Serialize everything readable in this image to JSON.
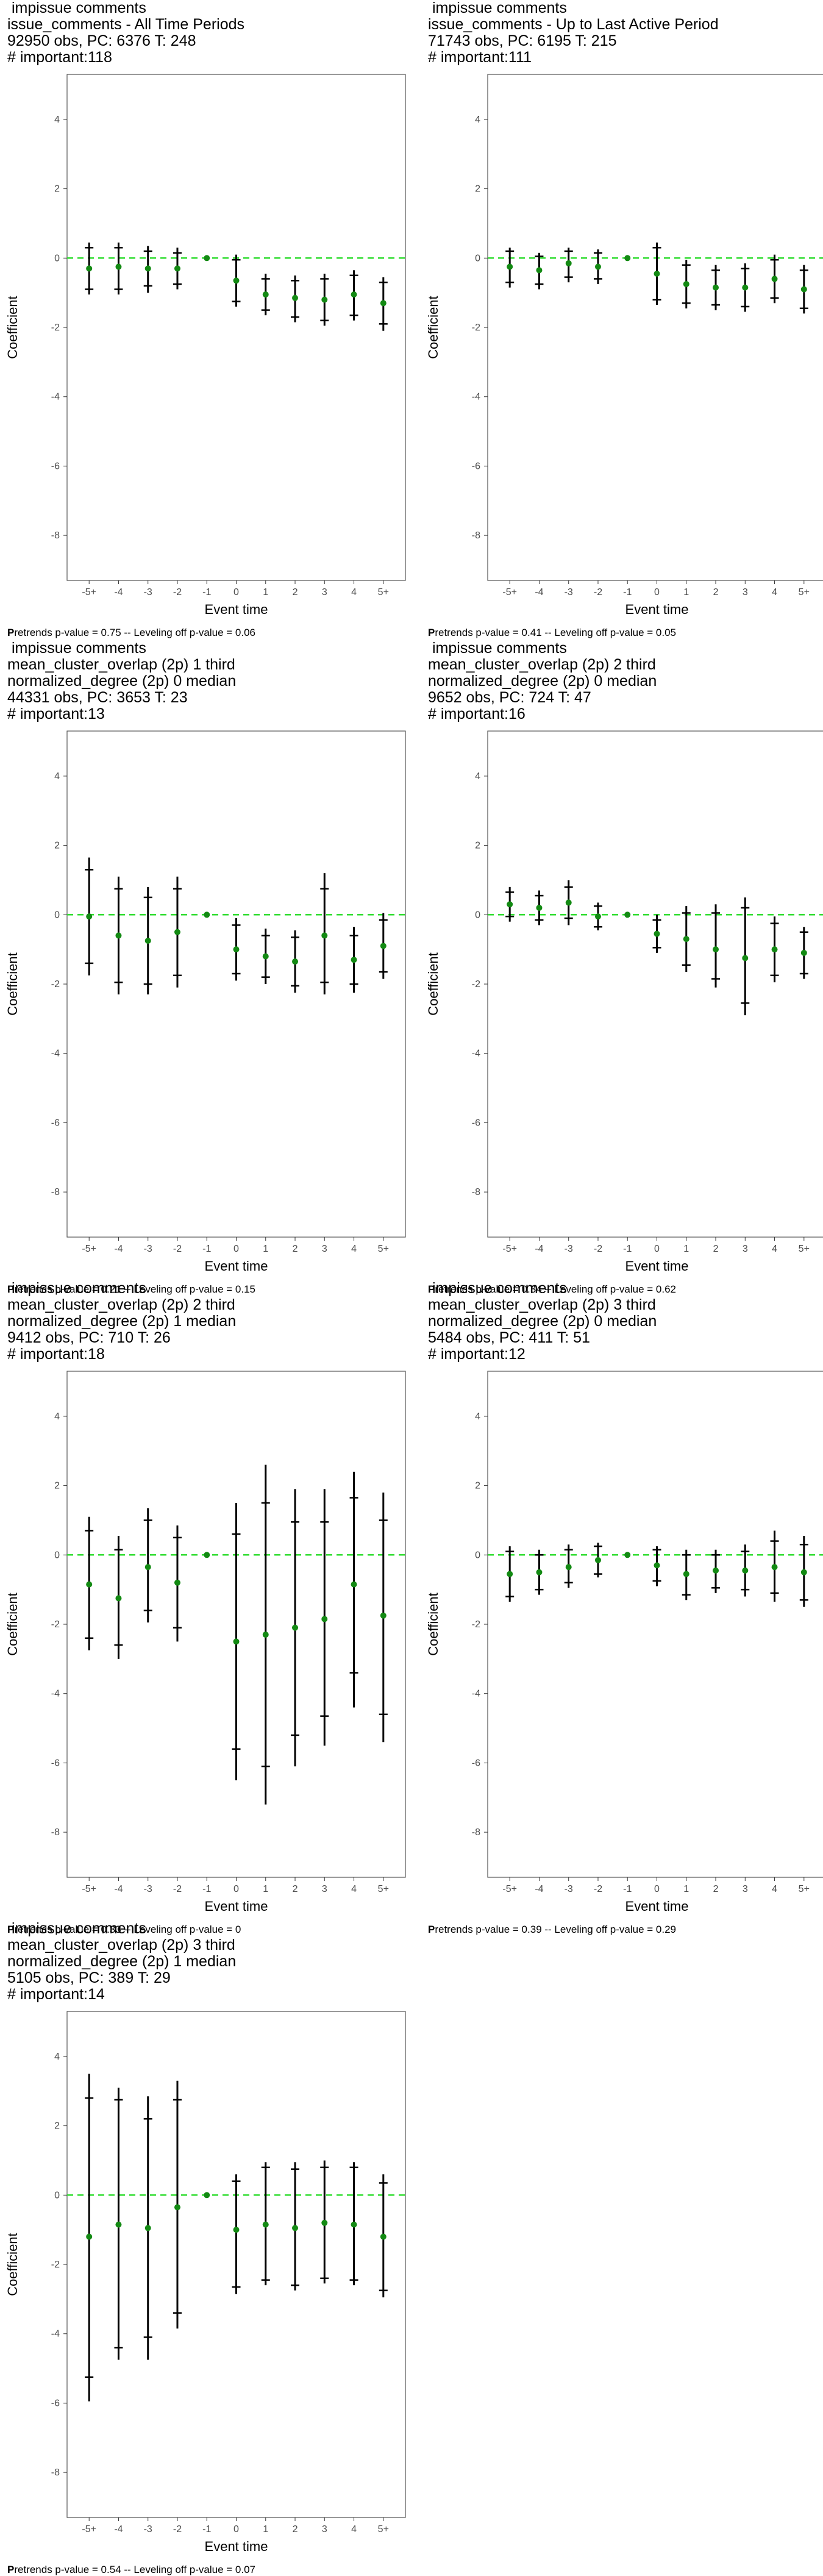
{
  "colors": {
    "zero_line": "#33dd33",
    "point": "#138a13",
    "bar": "#000000",
    "frame": "#555555"
  },
  "chart_data": [
    {
      "type": "scatter",
      "title_lines": [
        " impissue comments",
        "issue_comments - All Time Periods",
        "92950 obs, PC: 6376 T: 248",
        "# important:118"
      ],
      "xlabel": "Event time",
      "ylabel": "Coefficient",
      "categories": [
        "-5+",
        "-4",
        "-3",
        "-2",
        "-1",
        "0",
        "1",
        "2",
        "3",
        "4",
        "5+"
      ],
      "yticks": [
        "4",
        "2",
        "0",
        "-2",
        "-4",
        "-6",
        "-8"
      ],
      "ylim": [
        -9.3,
        5.3
      ],
      "estimate": [
        -0.3,
        -0.25,
        -0.3,
        -0.3,
        0,
        -0.65,
        -1.05,
        -1.15,
        -1.2,
        -1.05,
        -1.3
      ],
      "ci95": [
        [
          -1.05,
          0.45
        ],
        [
          -1.05,
          0.45
        ],
        [
          -1.0,
          0.35
        ],
        [
          -0.9,
          0.3
        ],
        [
          0,
          0
        ],
        [
          -1.4,
          0.1
        ],
        [
          -1.65,
          -0.45
        ],
        [
          -1.85,
          -0.5
        ],
        [
          -1.95,
          -0.45
        ],
        [
          -1.8,
          -0.35
        ],
        [
          -2.1,
          -0.55
        ]
      ],
      "ci90": [
        [
          -0.9,
          0.3
        ],
        [
          -0.9,
          0.3
        ],
        [
          -0.8,
          0.2
        ],
        [
          -0.75,
          0.15
        ],
        [
          0,
          0
        ],
        [
          -1.25,
          -0.05
        ],
        [
          -1.5,
          -0.6
        ],
        [
          -1.7,
          -0.65
        ],
        [
          -1.8,
          -0.6
        ],
        [
          -1.65,
          -0.5
        ],
        [
          -1.9,
          -0.7
        ]
      ],
      "note_bold": "P",
      "note": "retrends p-value = 0.75 -- Leveling off p-value = 0.06"
    },
    {
      "type": "scatter",
      "title_lines": [
        " impissue comments",
        "issue_comments - Up to Last Active Period",
        "71743 obs, PC: 6195 T: 215",
        "# important:111"
      ],
      "xlabel": "Event time",
      "ylabel": "Coefficient",
      "categories": [
        "-5+",
        "-4",
        "-3",
        "-2",
        "-1",
        "0",
        "1",
        "2",
        "3",
        "4",
        "5+"
      ],
      "yticks": [
        "4",
        "2",
        "0",
        "-2",
        "-4",
        "-6",
        "-8"
      ],
      "ylim": [
        -9.3,
        5.3
      ],
      "estimate": [
        -0.25,
        -0.35,
        -0.15,
        -0.25,
        0,
        -0.45,
        -0.75,
        -0.85,
        -0.85,
        -0.6,
        -0.9
      ],
      "ci95": [
        [
          -0.85,
          0.3
        ],
        [
          -0.9,
          0.15
        ],
        [
          -0.7,
          0.3
        ],
        [
          -0.75,
          0.25
        ],
        [
          0,
          0
        ],
        [
          -1.35,
          0.45
        ],
        [
          -1.45,
          -0.05
        ],
        [
          -1.5,
          -0.2
        ],
        [
          -1.55,
          -0.15
        ],
        [
          -1.3,
          0.1
        ],
        [
          -1.6,
          -0.2
        ]
      ],
      "ci90": [
        [
          -0.7,
          0.2
        ],
        [
          -0.75,
          0.05
        ],
        [
          -0.55,
          0.2
        ],
        [
          -0.6,
          0.15
        ],
        [
          0,
          0
        ],
        [
          -1.2,
          0.3
        ],
        [
          -1.3,
          -0.2
        ],
        [
          -1.35,
          -0.35
        ],
        [
          -1.4,
          -0.3
        ],
        [
          -1.15,
          -0.05
        ],
        [
          -1.45,
          -0.35
        ]
      ],
      "note_bold": "P",
      "note": "retrends p-value = 0.41 -- Leveling off p-value = 0.05"
    },
    {
      "type": "scatter",
      "title_lines": [
        " impissue comments",
        "mean_cluster_overlap (2p) 1 third",
        "normalized_degree (2p) 0 median",
        "44331 obs, PC: 3653 T: 23",
        "# important:13"
      ],
      "xlabel": "Event time",
      "ylabel": "Coefficient",
      "categories": [
        "-5+",
        "-4",
        "-3",
        "-2",
        "-1",
        "0",
        "1",
        "2",
        "3",
        "4",
        "5+"
      ],
      "yticks": [
        "4",
        "2",
        "0",
        "-2",
        "-4",
        "-6",
        "-8"
      ],
      "ylim": [
        -9.3,
        5.3
      ],
      "estimate": [
        -0.05,
        -0.6,
        -0.75,
        -0.5,
        0,
        -1.0,
        -1.2,
        -1.35,
        -0.6,
        -1.3,
        -0.9
      ],
      "ci95": [
        [
          -1.75,
          1.65
        ],
        [
          -2.3,
          1.1
        ],
        [
          -2.3,
          0.8
        ],
        [
          -2.1,
          1.1
        ],
        [
          0,
          0
        ],
        [
          -1.9,
          -0.1
        ],
        [
          -2.0,
          -0.4
        ],
        [
          -2.25,
          -0.45
        ],
        [
          -2.3,
          1.2
        ],
        [
          -2.25,
          -0.35
        ],
        [
          -1.85,
          0.05
        ]
      ],
      "ci90": [
        [
          -1.4,
          1.3
        ],
        [
          -1.95,
          0.75
        ],
        [
          -2.0,
          0.5
        ],
        [
          -1.75,
          0.75
        ],
        [
          0,
          0
        ],
        [
          -1.7,
          -0.3
        ],
        [
          -1.8,
          -0.6
        ],
        [
          -2.05,
          -0.65
        ],
        [
          -1.95,
          0.75
        ],
        [
          -2.0,
          -0.6
        ],
        [
          -1.65,
          -0.15
        ]
      ],
      "note_bold": "P",
      "note": "retrends p-value = 0.21 -- Leveling off p-value = 0.15"
    },
    {
      "type": "scatter",
      "title_lines": [
        " impissue comments",
        "mean_cluster_overlap (2p) 2 third",
        "normalized_degree (2p) 0 median",
        "9652 obs, PC: 724 T: 47",
        "# important:16"
      ],
      "xlabel": "Event time",
      "ylabel": "Coefficient",
      "categories": [
        "-5+",
        "-4",
        "-3",
        "-2",
        "-1",
        "0",
        "1",
        "2",
        "3",
        "4",
        "5+"
      ],
      "yticks": [
        "4",
        "2",
        "0",
        "-2",
        "-4",
        "-6",
        "-8"
      ],
      "ylim": [
        -9.3,
        5.3
      ],
      "estimate": [
        0.3,
        0.2,
        0.35,
        -0.05,
        0,
        -0.55,
        -0.7,
        -1.0,
        -1.25,
        -1.0,
        -1.1
      ],
      "ci95": [
        [
          -0.2,
          0.8
        ],
        [
          -0.3,
          0.7
        ],
        [
          -0.3,
          1.0
        ],
        [
          -0.45,
          0.35
        ],
        [
          0,
          0
        ],
        [
          -1.1,
          0.0
        ],
        [
          -1.65,
          0.25
        ],
        [
          -2.1,
          0.3
        ],
        [
          -2.9,
          0.5
        ],
        [
          -1.95,
          -0.05
        ],
        [
          -1.85,
          -0.35
        ]
      ],
      "ci90": [
        [
          -0.05,
          0.65
        ],
        [
          -0.15,
          0.55
        ],
        [
          -0.1,
          0.8
        ],
        [
          -0.35,
          0.25
        ],
        [
          0,
          0
        ],
        [
          -0.95,
          -0.15
        ],
        [
          -1.45,
          0.05
        ],
        [
          -1.85,
          0.05
        ],
        [
          -2.55,
          0.2
        ],
        [
          -1.75,
          -0.25
        ],
        [
          -1.7,
          -0.5
        ]
      ],
      "note_bold": "P",
      "note": "retrends p-value = 0.34 -- Leveling off p-value = 0.62"
    },
    {
      "type": "scatter",
      "title_lines": [
        " impissue comments",
        "mean_cluster_overlap (2p) 2 third",
        "normalized_degree (2p) 1 median",
        "9412 obs, PC: 710 T: 26",
        "# important:18"
      ],
      "xlabel": "Event time",
      "ylabel": "Coefficient",
      "categories": [
        "-5+",
        "-4",
        "-3",
        "-2",
        "-1",
        "0",
        "1",
        "2",
        "3",
        "4",
        "5+"
      ],
      "yticks": [
        "4",
        "2",
        "0",
        "-2",
        "-4",
        "-6",
        "-8"
      ],
      "ylim": [
        -9.3,
        5.3
      ],
      "estimate": [
        -0.85,
        -1.25,
        -0.35,
        -0.8,
        0,
        -2.5,
        -2.3,
        -2.1,
        -1.85,
        -0.85,
        -1.75
      ],
      "ci95": [
        [
          -2.75,
          1.1
        ],
        [
          -3.0,
          0.55
        ],
        [
          -1.95,
          1.35
        ],
        [
          -2.5,
          0.85
        ],
        [
          0,
          0
        ],
        [
          -6.5,
          1.5
        ],
        [
          -7.2,
          2.6
        ],
        [
          -6.1,
          1.9
        ],
        [
          -5.5,
          1.9
        ],
        [
          -4.4,
          2.4
        ],
        [
          -5.4,
          1.8
        ]
      ],
      "ci90": [
        [
          -2.4,
          0.7
        ],
        [
          -2.6,
          0.15
        ],
        [
          -1.6,
          1.0
        ],
        [
          -2.1,
          0.5
        ],
        [
          0,
          0
        ],
        [
          -5.6,
          0.6
        ],
        [
          -6.1,
          1.5
        ],
        [
          -5.2,
          0.95
        ],
        [
          -4.65,
          0.95
        ],
        [
          -3.4,
          1.65
        ],
        [
          -4.6,
          1.0
        ]
      ],
      "note_bold": "P",
      "note": "retrends p-value = 0.33 -- Leveling off p-value = 0"
    },
    {
      "type": "scatter",
      "title_lines": [
        " impissue comments",
        "mean_cluster_overlap (2p) 3 third",
        "normalized_degree (2p) 0 median",
        "5484 obs, PC: 411 T: 51",
        "# important:12"
      ],
      "xlabel": "Event time",
      "ylabel": "Coefficient",
      "categories": [
        "-5+",
        "-4",
        "-3",
        "-2",
        "-1",
        "0",
        "1",
        "2",
        "3",
        "4",
        "5+"
      ],
      "yticks": [
        "4",
        "2",
        "0",
        "-2",
        "-4",
        "-6",
        "-8"
      ],
      "ylim": [
        -9.3,
        5.3
      ],
      "estimate": [
        -0.55,
        -0.5,
        -0.35,
        -0.15,
        0,
        -0.3,
        -0.55,
        -0.45,
        -0.45,
        -0.35,
        -0.5
      ],
      "ci95": [
        [
          -1.35,
          0.25
        ],
        [
          -1.15,
          0.15
        ],
        [
          -0.95,
          0.3
        ],
        [
          -0.65,
          0.35
        ],
        [
          0,
          0
        ],
        [
          -0.9,
          0.25
        ],
        [
          -1.3,
          0.15
        ],
        [
          -1.1,
          0.15
        ],
        [
          -1.2,
          0.3
        ],
        [
          -1.35,
          0.7
        ],
        [
          -1.5,
          0.55
        ]
      ],
      "ci90": [
        [
          -1.2,
          0.1
        ],
        [
          -1.0,
          0.0
        ],
        [
          -0.8,
          0.15
        ],
        [
          -0.55,
          0.25
        ],
        [
          0,
          0
        ],
        [
          -0.75,
          0.15
        ],
        [
          -1.15,
          0.0
        ],
        [
          -0.95,
          0.0
        ],
        [
          -1.0,
          0.1
        ],
        [
          -1.1,
          0.4
        ],
        [
          -1.3,
          0.3
        ]
      ],
      "note_bold": "P",
      "note": "retrends p-value = 0.39 -- Leveling off p-value = 0.29"
    },
    {
      "type": "scatter",
      "title_lines": [
        " impissue comments",
        "mean_cluster_overlap (2p) 3 third",
        "normalized_degree (2p) 1 median",
        "5105 obs, PC: 389 T: 29",
        "# important:14"
      ],
      "xlabel": "Event time",
      "ylabel": "Coefficient",
      "categories": [
        "-5+",
        "-4",
        "-3",
        "-2",
        "-1",
        "0",
        "1",
        "2",
        "3",
        "4",
        "5+"
      ],
      "yticks": [
        "4",
        "2",
        "0",
        "-2",
        "-4",
        "-6",
        "-8"
      ],
      "ylim": [
        -9.3,
        5.3
      ],
      "estimate": [
        -1.2,
        -0.85,
        -0.95,
        -0.35,
        0,
        -1.0,
        -0.85,
        -0.95,
        -0.8,
        -0.85,
        -1.2
      ],
      "ci95": [
        [
          -5.95,
          3.5
        ],
        [
          -4.75,
          3.1
        ],
        [
          -4.75,
          2.85
        ],
        [
          -3.85,
          3.3
        ],
        [
          0,
          0
        ],
        [
          -2.85,
          0.6
        ],
        [
          -2.6,
          0.95
        ],
        [
          -2.75,
          0.95
        ],
        [
          -2.55,
          1.0
        ],
        [
          -2.6,
          0.95
        ],
        [
          -2.95,
          0.6
        ]
      ],
      "ci90": [
        [
          -5.25,
          2.8
        ],
        [
          -4.4,
          2.75
        ],
        [
          -4.1,
          2.2
        ],
        [
          -3.4,
          2.75
        ],
        [
          0,
          0
        ],
        [
          -2.65,
          0.4
        ],
        [
          -2.45,
          0.8
        ],
        [
          -2.6,
          0.75
        ],
        [
          -2.4,
          0.8
        ],
        [
          -2.45,
          0.8
        ],
        [
          -2.75,
          0.35
        ]
      ],
      "note_bold": "P",
      "note": "retrends p-value = 0.54 -- Leveling off p-value = 0.07"
    }
  ]
}
